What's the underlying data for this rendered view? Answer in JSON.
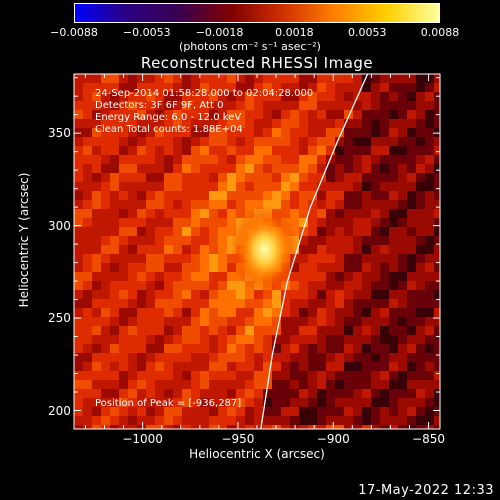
{
  "chart_data": {
    "type": "heatmap",
    "title": "Reconstructed RHESSI Image",
    "xlabel": "Heliocentric X (arcsec)",
    "ylabel": "Heliocentric Y (arcsec)",
    "xlim": [
      -1036,
      -844
    ],
    "ylim": [
      190,
      382
    ],
    "xticks": [
      -1000,
      -950,
      -900,
      -850
    ],
    "xtick_labels": [
      "−1000",
      "−950",
      "−900",
      "−850"
    ],
    "yticks": [
      200,
      250,
      300,
      350
    ],
    "ytick_labels": [
      "200",
      "250",
      "300",
      "350"
    ],
    "peak": {
      "x": -936,
      "y": 287
    },
    "limb_curve": [
      [
        -938,
        190
      ],
      [
        -932,
        230
      ],
      [
        -924,
        270
      ],
      [
        -912,
        310
      ],
      [
        -898,
        345
      ],
      [
        -882,
        382
      ]
    ],
    "colorbar": {
      "min": -0.0088,
      "max": 0.0088,
      "ticks": [
        -0.0088,
        -0.0053,
        -0.0018,
        0.0018,
        0.0053,
        0.0088
      ],
      "tick_labels": [
        "−0.0088",
        "−0.0053",
        "−0.0018",
        "0.0018",
        "0.0053",
        "0.0088"
      ],
      "unit": "(photons cm⁻² s⁻¹ asec⁻²)",
      "colors": [
        "#0000ff",
        "#2b0080",
        "#3a0050",
        "#800000",
        "#d03000",
        "#ff8000",
        "#ffd000",
        "#ffffa0"
      ]
    },
    "grid": false
  },
  "annotations": {
    "time_range": "24-Sep-2014 01:58:28.000 to 02:04:28.000",
    "detectors": "Detectors: 3F 6F 9F, Att 0",
    "energy": "Energy Range: 6.0 - 12.0 keV",
    "clean": "Clean     Total counts: 1.88E+04",
    "peak_position": "Position of Peak = [-936,287]"
  },
  "footer": {
    "date": "17-May-2022 12:33"
  }
}
